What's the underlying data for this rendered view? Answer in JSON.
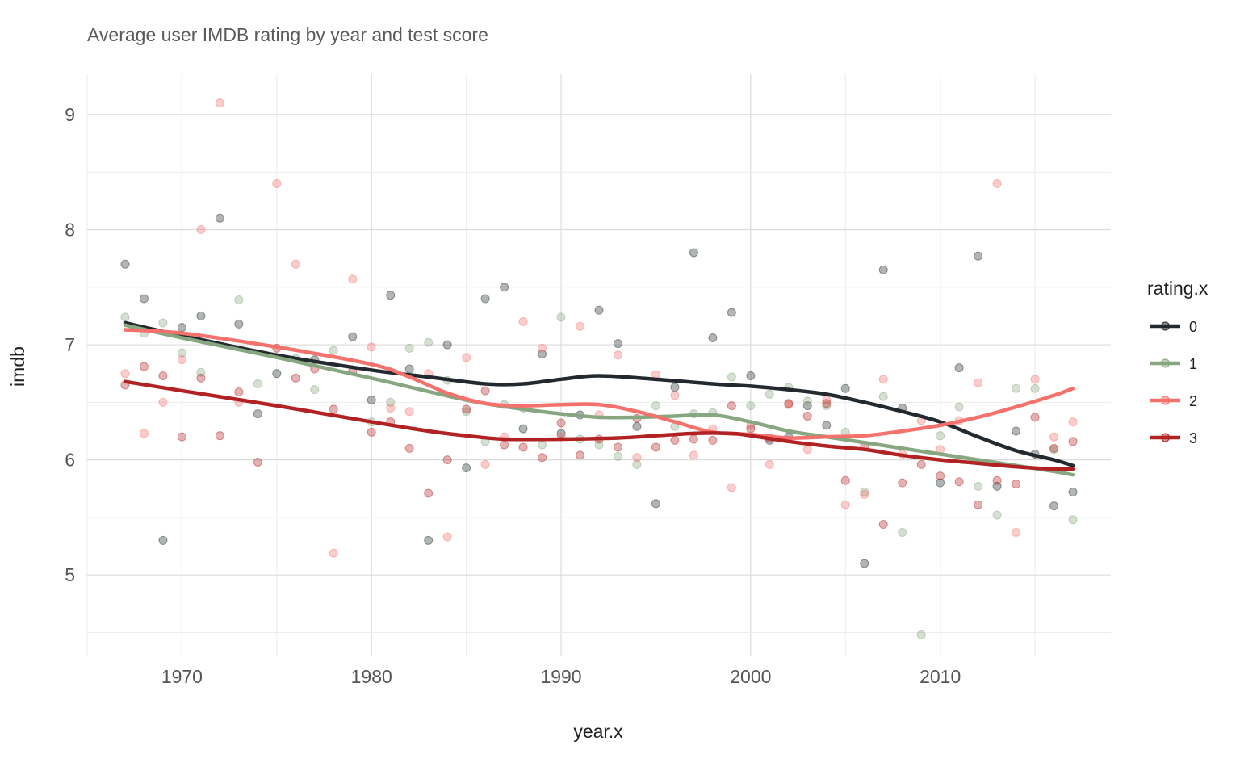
{
  "chart_data": {
    "type": "scatter",
    "title": "Average user IMDB rating by year and test score",
    "xlabel": "year.x",
    "ylabel": "imdb",
    "xlim": [
      1965,
      2019
    ],
    "ylim": [
      4.3,
      9.35
    ],
    "x_ticks": [
      "1970",
      "1980",
      "1990",
      "2000",
      "2010"
    ],
    "y_ticks": [
      "5",
      "6",
      "7",
      "8",
      "9"
    ],
    "grid": true,
    "legend": {
      "title": "rating.x",
      "position": "right"
    },
    "series": [
      {
        "name": "0",
        "color": "#222a2f",
        "points": [
          [
            1967,
            7.7
          ],
          [
            1968,
            7.4
          ],
          [
            1969,
            5.3
          ],
          [
            1970,
            7.15
          ],
          [
            1971,
            7.25
          ],
          [
            1972,
            8.1
          ],
          [
            1973,
            7.18
          ],
          [
            1974,
            6.4
          ],
          [
            1975,
            6.75
          ],
          [
            1977,
            6.87
          ],
          [
            1979,
            7.07
          ],
          [
            1980,
            6.52
          ],
          [
            1981,
            7.43
          ],
          [
            1982,
            6.79
          ],
          [
            1983,
            5.3
          ],
          [
            1984,
            7.0
          ],
          [
            1985,
            5.93
          ],
          [
            1986,
            7.4
          ],
          [
            1987,
            7.5
          ],
          [
            1988,
            6.27
          ],
          [
            1989,
            6.92
          ],
          [
            1990,
            6.23
          ],
          [
            1991,
            6.39
          ],
          [
            1992,
            7.3
          ],
          [
            1993,
            7.01
          ],
          [
            1994,
            6.29
          ],
          [
            1995,
            5.62
          ],
          [
            1996,
            6.63
          ],
          [
            1997,
            7.8
          ],
          [
            1998,
            7.06
          ],
          [
            1999,
            7.28
          ],
          [
            2000,
            6.73
          ],
          [
            2001,
            6.17
          ],
          [
            2002,
            6.2
          ],
          [
            2003,
            6.47
          ],
          [
            2004,
            6.3
          ],
          [
            2005,
            6.62
          ],
          [
            2006,
            5.1
          ],
          [
            2007,
            7.65
          ],
          [
            2008,
            6.45
          ],
          [
            2010,
            5.8
          ],
          [
            2011,
            6.8
          ],
          [
            2012,
            7.77
          ],
          [
            2013,
            5.77
          ],
          [
            2014,
            6.25
          ],
          [
            2015,
            6.05
          ],
          [
            2016,
            5.6
          ],
          [
            2017,
            5.72
          ]
        ],
        "trend": [
          [
            1967,
            7.19
          ],
          [
            1970,
            7.08
          ],
          [
            1975,
            6.91
          ],
          [
            1980,
            6.78
          ],
          [
            1983,
            6.72
          ],
          [
            1986,
            6.66
          ],
          [
            1988,
            6.66
          ],
          [
            1990,
            6.7
          ],
          [
            1992,
            6.73
          ],
          [
            1995,
            6.7
          ],
          [
            1998,
            6.66
          ],
          [
            2000,
            6.64
          ],
          [
            2002,
            6.61
          ],
          [
            2004,
            6.57
          ],
          [
            2006,
            6.5
          ],
          [
            2008,
            6.42
          ],
          [
            2010,
            6.33
          ],
          [
            2012,
            6.2
          ],
          [
            2014,
            6.08
          ],
          [
            2016,
            6.0
          ],
          [
            2017,
            5.95
          ]
        ]
      },
      {
        "name": "1",
        "color": "#86a77f",
        "points": [
          [
            1967,
            7.24
          ],
          [
            1968,
            7.1
          ],
          [
            1969,
            7.19
          ],
          [
            1970,
            6.93
          ],
          [
            1971,
            6.76
          ],
          [
            1973,
            7.39
          ],
          [
            1974,
            6.66
          ],
          [
            1976,
            6.88
          ],
          [
            1977,
            6.61
          ],
          [
            1978,
            6.95
          ],
          [
            1980,
            6.33
          ],
          [
            1981,
            6.5
          ],
          [
            1982,
            6.97
          ],
          [
            1983,
            7.02
          ],
          [
            1984,
            6.69
          ],
          [
            1985,
            6.42
          ],
          [
            1986,
            6.16
          ],
          [
            1987,
            6.48
          ],
          [
            1988,
            6.45
          ],
          [
            1989,
            6.13
          ],
          [
            1990,
            7.24
          ],
          [
            1991,
            6.18
          ],
          [
            1992,
            6.13
          ],
          [
            1993,
            6.03
          ],
          [
            1994,
            5.96
          ],
          [
            1995,
            6.47
          ],
          [
            1996,
            6.29
          ],
          [
            1997,
            6.4
          ],
          [
            1998,
            6.41
          ],
          [
            1999,
            6.72
          ],
          [
            2000,
            6.47
          ],
          [
            2001,
            6.57
          ],
          [
            2002,
            6.63
          ],
          [
            2003,
            6.51
          ],
          [
            2004,
            6.47
          ],
          [
            2005,
            6.24
          ],
          [
            2006,
            5.72
          ],
          [
            2007,
            6.55
          ],
          [
            2008,
            5.37
          ],
          [
            2009,
            4.48
          ],
          [
            2010,
            6.21
          ],
          [
            2011,
            6.46
          ],
          [
            2012,
            5.77
          ],
          [
            2013,
            5.52
          ],
          [
            2014,
            6.62
          ],
          [
            2015,
            6.62
          ],
          [
            2016,
            6.09
          ],
          [
            2017,
            5.48
          ]
        ],
        "trend": [
          [
            1967,
            7.17
          ],
          [
            1970,
            7.06
          ],
          [
            1975,
            6.89
          ],
          [
            1980,
            6.71
          ],
          [
            1985,
            6.52
          ],
          [
            1988,
            6.44
          ],
          [
            1990,
            6.4
          ],
          [
            1992,
            6.37
          ],
          [
            1994,
            6.37
          ],
          [
            1996,
            6.38
          ],
          [
            1998,
            6.39
          ],
          [
            2000,
            6.33
          ],
          [
            2002,
            6.25
          ],
          [
            2004,
            6.2
          ],
          [
            2006,
            6.15
          ],
          [
            2008,
            6.1
          ],
          [
            2010,
            6.05
          ],
          [
            2012,
            6.0
          ],
          [
            2014,
            5.95
          ],
          [
            2016,
            5.9
          ],
          [
            2017,
            5.87
          ]
        ]
      },
      {
        "name": "2",
        "color": "#f4716c",
        "points": [
          [
            1967,
            6.75
          ],
          [
            1968,
            6.23
          ],
          [
            1969,
            6.5
          ],
          [
            1970,
            6.87
          ],
          [
            1971,
            8.0
          ],
          [
            1972,
            9.1
          ],
          [
            1973,
            6.5
          ],
          [
            1975,
            8.4
          ],
          [
            1976,
            7.7
          ],
          [
            1978,
            5.19
          ],
          [
            1979,
            7.57
          ],
          [
            1980,
            6.98
          ],
          [
            1981,
            6.45
          ],
          [
            1982,
            6.42
          ],
          [
            1983,
            6.75
          ],
          [
            1984,
            5.33
          ],
          [
            1985,
            6.89
          ],
          [
            1986,
            5.96
          ],
          [
            1987,
            6.2
          ],
          [
            1988,
            7.2
          ],
          [
            1989,
            6.97
          ],
          [
            1990,
            6.2
          ],
          [
            1991,
            7.16
          ],
          [
            1992,
            6.39
          ],
          [
            1993,
            6.91
          ],
          [
            1994,
            6.02
          ],
          [
            1995,
            6.74
          ],
          [
            1996,
            6.56
          ],
          [
            1997,
            6.04
          ],
          [
            1998,
            6.27
          ],
          [
            1999,
            5.76
          ],
          [
            2000,
            6.3
          ],
          [
            2001,
            5.96
          ],
          [
            2002,
            6.48
          ],
          [
            2003,
            6.09
          ],
          [
            2004,
            6.52
          ],
          [
            2005,
            5.61
          ],
          [
            2006,
            5.7
          ],
          [
            2007,
            6.7
          ],
          [
            2008,
            6.05
          ],
          [
            2009,
            6.34
          ],
          [
            2010,
            6.09
          ],
          [
            2011,
            6.34
          ],
          [
            2012,
            6.67
          ],
          [
            2013,
            8.4
          ],
          [
            2014,
            5.37
          ],
          [
            2015,
            6.7
          ],
          [
            2016,
            6.2
          ],
          [
            2017,
            6.33
          ]
        ],
        "trend": [
          [
            1967,
            7.13
          ],
          [
            1970,
            7.1
          ],
          [
            1975,
            6.98
          ],
          [
            1980,
            6.83
          ],
          [
            1982,
            6.72
          ],
          [
            1984,
            6.58
          ],
          [
            1986,
            6.49
          ],
          [
            1988,
            6.47
          ],
          [
            1990,
            6.48
          ],
          [
            1992,
            6.48
          ],
          [
            1994,
            6.42
          ],
          [
            1996,
            6.33
          ],
          [
            1998,
            6.24
          ],
          [
            2000,
            6.22
          ],
          [
            2002,
            6.19
          ],
          [
            2004,
            6.2
          ],
          [
            2006,
            6.21
          ],
          [
            2008,
            6.25
          ],
          [
            2010,
            6.3
          ],
          [
            2012,
            6.37
          ],
          [
            2014,
            6.46
          ],
          [
            2016,
            6.56
          ],
          [
            2017,
            6.62
          ]
        ]
      },
      {
        "name": "3",
        "color": "#b22222",
        "points": [
          [
            1967,
            6.65
          ],
          [
            1968,
            6.81
          ],
          [
            1969,
            6.73
          ],
          [
            1970,
            6.2
          ],
          [
            1971,
            6.71
          ],
          [
            1972,
            6.21
          ],
          [
            1973,
            6.59
          ],
          [
            1974,
            5.98
          ],
          [
            1975,
            6.97
          ],
          [
            1976,
            6.71
          ],
          [
            1977,
            6.79
          ],
          [
            1978,
            6.44
          ],
          [
            1979,
            6.77
          ],
          [
            1980,
            6.24
          ],
          [
            1981,
            6.33
          ],
          [
            1982,
            6.1
          ],
          [
            1983,
            5.71
          ],
          [
            1984,
            6.0
          ],
          [
            1985,
            6.44
          ],
          [
            1986,
            6.6
          ],
          [
            1987,
            6.13
          ],
          [
            1988,
            6.11
          ],
          [
            1989,
            6.02
          ],
          [
            1990,
            6.32
          ],
          [
            1991,
            6.04
          ],
          [
            1992,
            6.18
          ],
          [
            1993,
            6.11
          ],
          [
            1994,
            6.36
          ],
          [
            1995,
            6.11
          ],
          [
            1996,
            6.17
          ],
          [
            1997,
            6.18
          ],
          [
            1998,
            6.17
          ],
          [
            1999,
            6.47
          ],
          [
            2000,
            6.27
          ],
          [
            2001,
            6.19
          ],
          [
            2002,
            6.49
          ],
          [
            2003,
            6.38
          ],
          [
            2004,
            6.49
          ],
          [
            2005,
            5.82
          ],
          [
            2006,
            6.12
          ],
          [
            2007,
            5.44
          ],
          [
            2008,
            5.8
          ],
          [
            2009,
            5.96
          ],
          [
            2010,
            5.86
          ],
          [
            2011,
            5.81
          ],
          [
            2012,
            5.61
          ],
          [
            2013,
            5.82
          ],
          [
            2014,
            5.79
          ],
          [
            2015,
            6.37
          ],
          [
            2016,
            6.1
          ],
          [
            2017,
            6.16
          ]
        ],
        "trend": [
          [
            1967,
            6.68
          ],
          [
            1970,
            6.6
          ],
          [
            1975,
            6.47
          ],
          [
            1980,
            6.33
          ],
          [
            1983,
            6.25
          ],
          [
            1985,
            6.21
          ],
          [
            1987,
            6.18
          ],
          [
            1990,
            6.18
          ],
          [
            1993,
            6.19
          ],
          [
            1995,
            6.21
          ],
          [
            1997,
            6.23
          ],
          [
            1999,
            6.23
          ],
          [
            2000,
            6.21
          ],
          [
            2002,
            6.16
          ],
          [
            2004,
            6.12
          ],
          [
            2006,
            6.09
          ],
          [
            2008,
            6.04
          ],
          [
            2010,
            6.0
          ],
          [
            2012,
            5.97
          ],
          [
            2014,
            5.94
          ],
          [
            2016,
            5.92
          ],
          [
            2017,
            5.92
          ]
        ]
      }
    ]
  }
}
